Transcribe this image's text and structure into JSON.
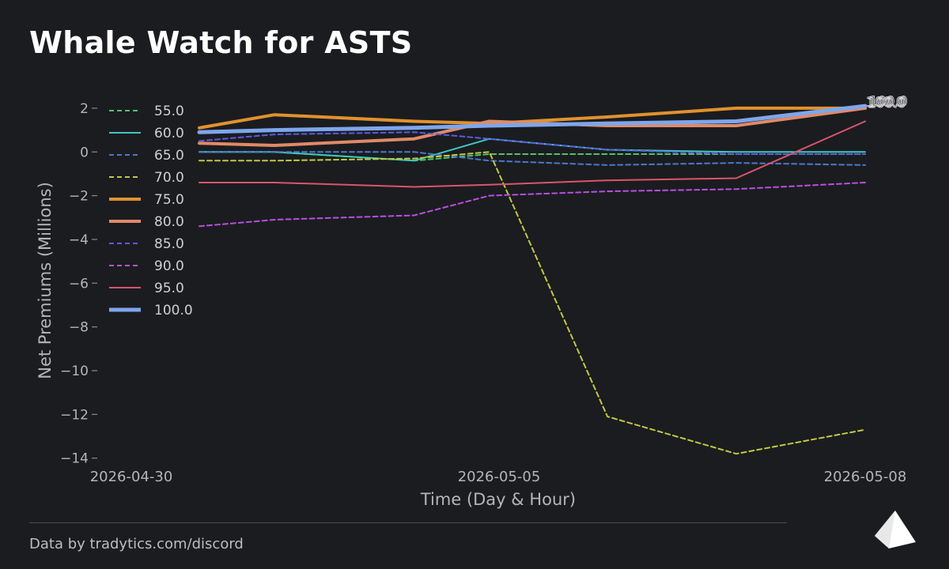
{
  "title": "Whale Watch for ASTS",
  "footer": "Data by tradytics.com/discord",
  "logo_icon": "tradytics-triangle-logo",
  "chart_data": {
    "type": "line",
    "title": "Whale Watch for ASTS",
    "xlabel": "Time (Day & Hour)",
    "ylabel": "Net Premiums (Millions)",
    "x_tick_labels": [
      "2026-04-30",
      "2026-05-05",
      "2026-05-08"
    ],
    "y_ticks": [
      2,
      0,
      -2,
      -4,
      -6,
      -8,
      -10,
      -12,
      -14
    ],
    "ylim": [
      -14.3,
      2.9
    ],
    "grid": false,
    "legend_position": "top-left",
    "end_labels_text": "100.0",
    "x": [
      0,
      0.7,
      2,
      2.7,
      3.8,
      5,
      6.2
    ],
    "series": [
      {
        "name": "55.0",
        "color": "#4fc36b",
        "dash": "dash",
        "width": 2,
        "values": [
          0.0,
          0.0,
          -0.4,
          -0.1,
          -0.1,
          -0.1,
          -0.1
        ]
      },
      {
        "name": "60.0",
        "color": "#3ec8c0",
        "dash": "solid",
        "width": 2,
        "values": [
          0.0,
          0.0,
          -0.4,
          0.6,
          0.1,
          0.0,
          0.0
        ]
      },
      {
        "name": "65.0",
        "color": "#4a78c8",
        "dash": "dash",
        "width": 2,
        "values": [
          0.0,
          0.0,
          0.0,
          -0.4,
          -0.6,
          -0.5,
          -0.6
        ]
      },
      {
        "name": "70.0",
        "color": "#c2c93e",
        "dash": "dash",
        "width": 2,
        "values": [
          -0.4,
          -0.4,
          -0.3,
          0.0,
          -12.1,
          -13.8,
          -12.7
        ]
      },
      {
        "name": "75.0",
        "color": "#e0922e",
        "dash": "solid",
        "width": 4,
        "values": [
          1.1,
          1.7,
          1.4,
          1.3,
          1.6,
          2.0,
          2.0
        ]
      },
      {
        "name": "80.0",
        "color": "#e08a68",
        "dash": "solid",
        "width": 4,
        "values": [
          0.4,
          0.3,
          0.6,
          1.4,
          1.2,
          1.2,
          2.0
        ]
      },
      {
        "name": "85.0",
        "color": "#5b5be0",
        "dash": "dash",
        "width": 2,
        "values": [
          0.5,
          0.8,
          0.9,
          0.6,
          0.1,
          -0.1,
          -0.1
        ]
      },
      {
        "name": "90.0",
        "color": "#b84fdc",
        "dash": "dash",
        "width": 2,
        "values": [
          -3.4,
          -3.1,
          -2.9,
          -2.0,
          -1.8,
          -1.7,
          -1.4
        ]
      },
      {
        "name": "95.0",
        "color": "#d9566a",
        "dash": "solid",
        "width": 2,
        "values": [
          -1.4,
          -1.4,
          -1.6,
          -1.5,
          -1.3,
          -1.2,
          1.4
        ]
      },
      {
        "name": "100.0",
        "color": "#7ea6ec",
        "dash": "solid",
        "width": 5,
        "values": [
          0.9,
          1.0,
          1.1,
          1.2,
          1.3,
          1.4,
          2.1
        ]
      }
    ]
  }
}
